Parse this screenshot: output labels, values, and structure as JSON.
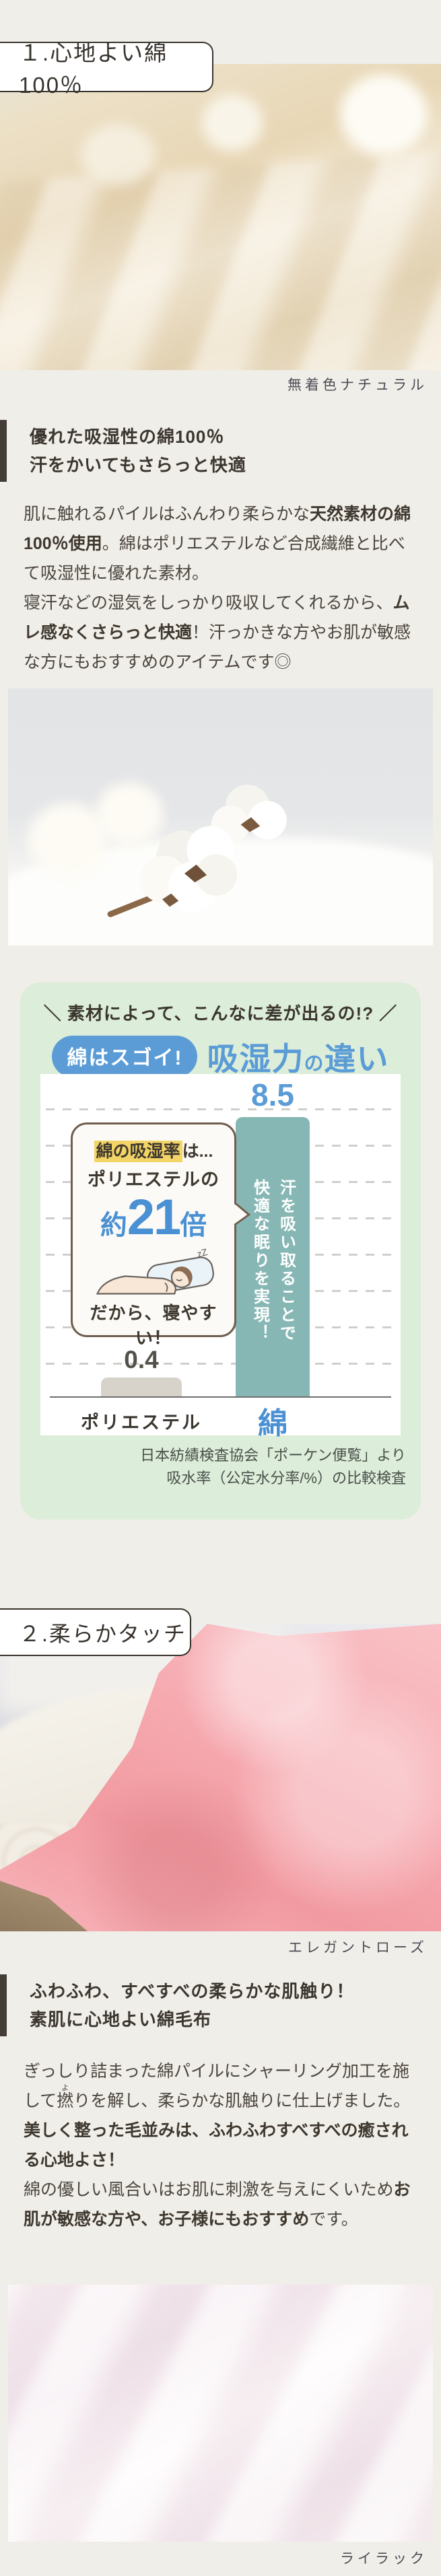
{
  "section1": {
    "label": "１.心地よい綿100％",
    "photo_caption": "無着色ナチュラル",
    "heading_lines": [
      "優れた吸湿性の綿100％",
      "汗をかいてもさらっと快適"
    ],
    "body_segments": [
      {
        "t": "肌に触れるパイルはふんわり柔らかな"
      },
      {
        "t": "天然素材の綿100％使用",
        "b": true
      },
      {
        "t": "。綿はポリエステルなど合成繊維と比べて吸湿性に優れた素材。\n寝汗などの湿気をしっかり吸収してくれるから、"
      },
      {
        "t": "ムレ感なくさらっと快適",
        "b": true
      },
      {
        "t": "！汗っかきな方やお肌が敏感な方にもおすすめのアイテムです◎"
      }
    ]
  },
  "hygro_card": {
    "top_title": "＼ 素材によって、こんなに差が出るの!? ／",
    "pill_label": "綿はスゴイ!",
    "big_title_segments": [
      {
        "t": "吸湿力"
      },
      {
        "t": "の",
        "small": true
      },
      {
        "t": "違い"
      }
    ],
    "bubble": {
      "highlight": "綿の吸湿率",
      "suffix": "は...",
      "line2": "ポリエステルの",
      "approx": "約",
      "value": "21",
      "unit": "倍",
      "tagline": "だから、寝やすい！",
      "zzz": "zZ"
    },
    "bar_caption_columns": [
      "汗を吸い取ることで",
      "快適な眠りを実現！"
    ],
    "source_lines": [
      "日本紡績検査協会「ポーケン便覧」より",
      "吸水率（公定水分率/%）の比較検査"
    ],
    "chart_data": {
      "type": "bar",
      "categories": [
        "ポリエステル",
        "綿"
      ],
      "values": [
        0.4,
        8.5
      ],
      "title": "吸湿力の違い",
      "value_unit": "吸水率（公定水分率/%）",
      "ylim": [
        0,
        9.5
      ],
      "grid": "horizontal-dashed",
      "legend": "none",
      "bar_colors": [
        "#d7d2ca",
        "#87b7b4"
      ],
      "category_label_colors": [
        "#3b362f",
        "#4a90d4"
      ]
    }
  },
  "section2": {
    "label": "２.柔らかタッチ",
    "photo_caption": "エレガントローズ",
    "heading_lines": [
      "ふわふわ、すべすべの柔らかな肌触り！",
      "素肌に心地よい綿毛布"
    ],
    "body_segments": [
      {
        "t": "ぎっしり詰まった綿パイルにシャーリング加工を施して"
      },
      {
        "t": "撚",
        "rt": "よ"
      },
      {
        "t": "りを解し、柔らかな肌触りに仕上げました。"
      },
      {
        "t": "美しく整った毛並みは、ふわふわすべすべの癒される心地よさ！",
        "b": true
      },
      {
        "t": "\n綿の優しい風合いはお肌に刺激を与えにくいため"
      },
      {
        "t": "お肌が敏感な方や、お子様にもおすすめ",
        "b": true
      },
      {
        "t": "です。"
      }
    ]
  },
  "footer_photo_caption": "ライラック",
  "colors": {
    "accent_blue": "#5b9cd6",
    "bar_teal": "#87b7b4",
    "bar_gray": "#d7d2ca",
    "card_green": "#dcedd9",
    "highlight_yellow": "#f3d466",
    "text_dark": "#3b362f"
  }
}
